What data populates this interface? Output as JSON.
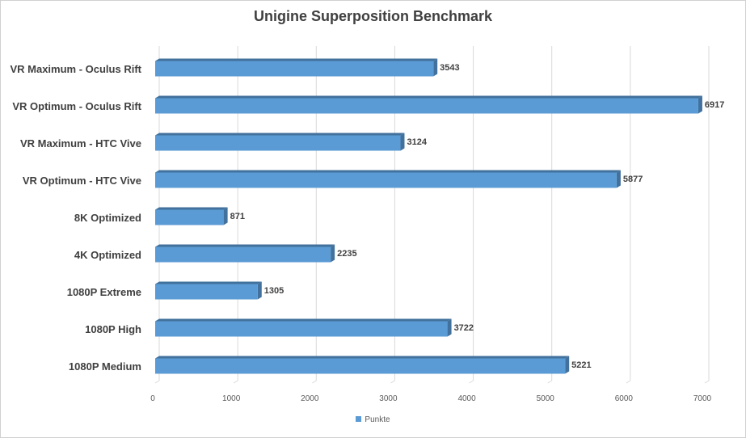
{
  "chart_data": {
    "type": "bar",
    "orientation": "horizontal",
    "title": "Unigine Superposition Benchmark",
    "categories": [
      "VR Maximum - Oculus Rift",
      "VR Optimum - Oculus Rift",
      "VR Maximum - HTC Vive",
      "VR Optimum - HTC Vive",
      "8K Optimized",
      "4K Optimized",
      "1080P Extreme",
      "1080P High",
      "1080P Medium"
    ],
    "series": [
      {
        "name": "Punkte",
        "values": [
          3543,
          6917,
          3124,
          5877,
          871,
          2235,
          1305,
          3722,
          5221
        ]
      }
    ],
    "xlim": [
      0,
      7000
    ],
    "xticks": [
      0,
      1000,
      2000,
      3000,
      4000,
      5000,
      6000,
      7000
    ],
    "grid": true,
    "legend_position": "bottom",
    "colors": {
      "bar": "#5b9bd5",
      "bar_top": "#6fa8dc",
      "bar_side": "#41719c",
      "grid": "#d9d9d9"
    }
  }
}
